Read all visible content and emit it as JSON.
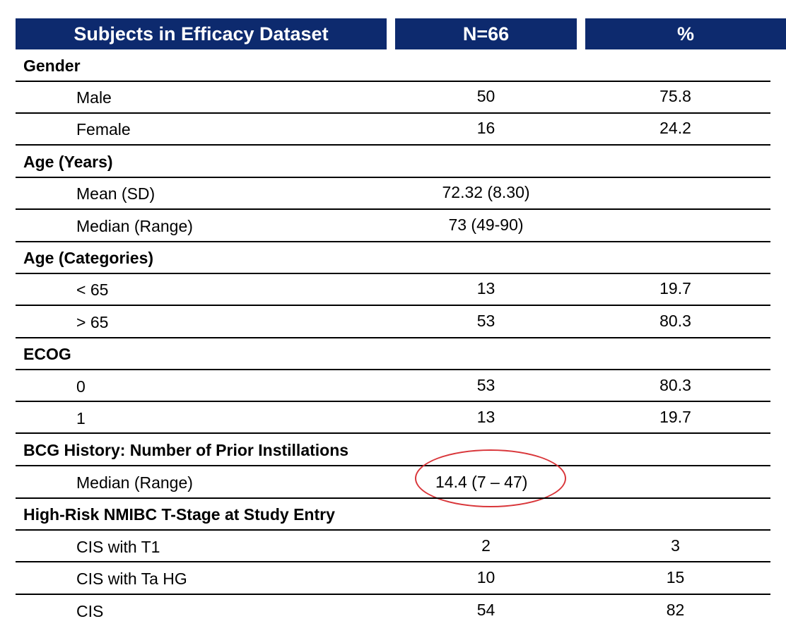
{
  "header": {
    "col1": "Subjects in Efficacy Dataset",
    "col2": "N=66",
    "col3": "%"
  },
  "sections": [
    {
      "title": "Gender",
      "rows": [
        {
          "label": "Male",
          "n": "50",
          "pct": "75.8"
        },
        {
          "label": "Female",
          "n": "16",
          "pct": "24.2"
        }
      ]
    },
    {
      "title": "Age (Years)",
      "rows": [
        {
          "label": "Mean (SD)",
          "n": "72.32 (8.30)",
          "pct": ""
        },
        {
          "label": "Median (Range)",
          "n": "73 (49-90)",
          "pct": ""
        }
      ]
    },
    {
      "title": "Age (Categories)",
      "rows": [
        {
          "label": "< 65",
          "n": "13",
          "pct": "19.7"
        },
        {
          "label": "> 65",
          "n": "53",
          "pct": "80.3"
        }
      ]
    },
    {
      "title": "ECOG",
      "rows": [
        {
          "label": "0",
          "n": "53",
          "pct": "80.3"
        },
        {
          "label": "1",
          "n": "13",
          "pct": "19.7"
        }
      ]
    },
    {
      "title": "BCG History: Number of Prior Instillations",
      "rows": [
        {
          "label": "Median (Range)",
          "n": "14.4 (7 – 47)",
          "pct": ""
        }
      ]
    },
    {
      "title": "High-Risk NMIBC T-Stage at Study Entry",
      "rows": [
        {
          "label": "CIS with T1",
          "n": "2",
          "pct": "3"
        },
        {
          "label": "CIS with Ta HG",
          "n": "10",
          "pct": "15"
        },
        {
          "label": "CIS",
          "n": "54",
          "pct": "82"
        }
      ]
    }
  ],
  "colors": {
    "header_bg": "#0d2a6e",
    "highlight_circle": "#d9363a"
  }
}
